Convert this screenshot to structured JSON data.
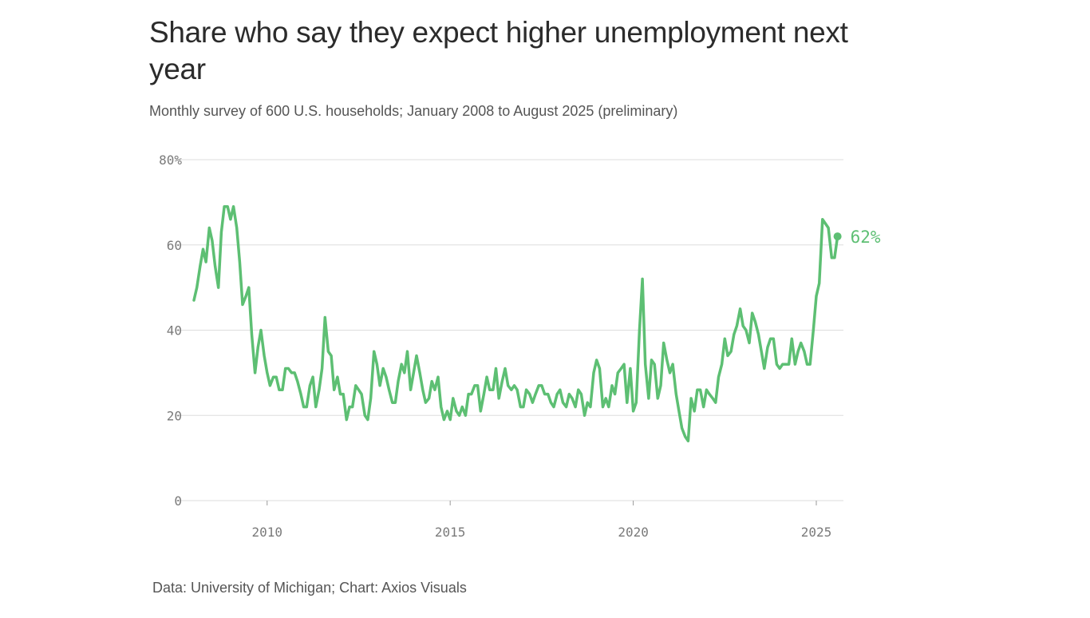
{
  "colors": {
    "line": "#5dbf73",
    "grid": "#dddddd",
    "axis_text": "#7a7a7a"
  },
  "chart_data": {
    "type": "line",
    "title": "Share who say they expect higher unemployment next year",
    "subtitle": "Monthly survey of 600 U.S. households; January 2008 to August 2025 (preliminary)",
    "source": "Data: University of Michigan; Chart: Axios Visuals",
    "xlim": [
      2008.0,
      2025.75
    ],
    "ylim": [
      0,
      80
    ],
    "y_ticks": [
      {
        "value": 0,
        "label": "0"
      },
      {
        "value": 20,
        "label": "20"
      },
      {
        "value": 40,
        "label": "40"
      },
      {
        "value": 60,
        "label": "60"
      },
      {
        "value": 80,
        "label": "80%"
      }
    ],
    "x_ticks": [
      {
        "value": 2010,
        "label": "2010"
      },
      {
        "value": 2015,
        "label": "2015"
      },
      {
        "value": 2020,
        "label": "2020"
      },
      {
        "value": 2025,
        "label": "2025"
      }
    ],
    "grid": true,
    "end_label": "62%",
    "series": [
      {
        "points": [
          [
            2008.0,
            47
          ],
          [
            2008.08,
            50
          ],
          [
            2008.17,
            55
          ],
          [
            2008.25,
            59
          ],
          [
            2008.33,
            56
          ],
          [
            2008.42,
            64
          ],
          [
            2008.5,
            61
          ],
          [
            2008.58,
            55
          ],
          [
            2008.67,
            50
          ],
          [
            2008.75,
            63
          ],
          [
            2008.83,
            69
          ],
          [
            2008.92,
            69
          ],
          [
            2009.0,
            66
          ],
          [
            2009.08,
            69
          ],
          [
            2009.17,
            64
          ],
          [
            2009.25,
            56
          ],
          [
            2009.33,
            46
          ],
          [
            2009.42,
            48
          ],
          [
            2009.5,
            50
          ],
          [
            2009.58,
            39
          ],
          [
            2009.67,
            30
          ],
          [
            2009.75,
            36
          ],
          [
            2009.83,
            40
          ],
          [
            2009.92,
            34
          ],
          [
            2010.0,
            30
          ],
          [
            2010.08,
            27
          ],
          [
            2010.17,
            29
          ],
          [
            2010.25,
            29
          ],
          [
            2010.33,
            26
          ],
          [
            2010.42,
            26
          ],
          [
            2010.5,
            31
          ],
          [
            2010.58,
            31
          ],
          [
            2010.67,
            30
          ],
          [
            2010.75,
            30
          ],
          [
            2010.83,
            28
          ],
          [
            2010.92,
            25
          ],
          [
            2011.0,
            22
          ],
          [
            2011.08,
            22
          ],
          [
            2011.17,
            27
          ],
          [
            2011.25,
            29
          ],
          [
            2011.33,
            22
          ],
          [
            2011.42,
            26
          ],
          [
            2011.5,
            31
          ],
          [
            2011.58,
            43
          ],
          [
            2011.67,
            35
          ],
          [
            2011.75,
            34
          ],
          [
            2011.83,
            26
          ],
          [
            2011.92,
            29
          ],
          [
            2012.0,
            25
          ],
          [
            2012.08,
            25
          ],
          [
            2012.17,
            19
          ],
          [
            2012.25,
            22
          ],
          [
            2012.33,
            22
          ],
          [
            2012.42,
            27
          ],
          [
            2012.5,
            26
          ],
          [
            2012.58,
            25
          ],
          [
            2012.67,
            20
          ],
          [
            2012.75,
            19
          ],
          [
            2012.83,
            24
          ],
          [
            2012.92,
            35
          ],
          [
            2013.0,
            32
          ],
          [
            2013.08,
            27
          ],
          [
            2013.17,
            31
          ],
          [
            2013.25,
            29
          ],
          [
            2013.33,
            26
          ],
          [
            2013.42,
            23
          ],
          [
            2013.5,
            23
          ],
          [
            2013.58,
            28
          ],
          [
            2013.67,
            32
          ],
          [
            2013.75,
            30
          ],
          [
            2013.83,
            35
          ],
          [
            2013.92,
            26
          ],
          [
            2014.0,
            30
          ],
          [
            2014.08,
            34
          ],
          [
            2014.17,
            30
          ],
          [
            2014.25,
            26
          ],
          [
            2014.33,
            23
          ],
          [
            2014.42,
            24
          ],
          [
            2014.5,
            28
          ],
          [
            2014.58,
            26
          ],
          [
            2014.67,
            29
          ],
          [
            2014.75,
            22
          ],
          [
            2014.83,
            19
          ],
          [
            2014.92,
            21
          ],
          [
            2015.0,
            19
          ],
          [
            2015.08,
            24
          ],
          [
            2015.17,
            21
          ],
          [
            2015.25,
            20
          ],
          [
            2015.33,
            22
          ],
          [
            2015.42,
            20
          ],
          [
            2015.5,
            25
          ],
          [
            2015.58,
            25
          ],
          [
            2015.67,
            27
          ],
          [
            2015.75,
            27
          ],
          [
            2015.83,
            21
          ],
          [
            2015.92,
            25
          ],
          [
            2016.0,
            29
          ],
          [
            2016.08,
            26
          ],
          [
            2016.17,
            26
          ],
          [
            2016.25,
            31
          ],
          [
            2016.33,
            24
          ],
          [
            2016.42,
            28
          ],
          [
            2016.5,
            31
          ],
          [
            2016.58,
            27
          ],
          [
            2016.67,
            26
          ],
          [
            2016.75,
            27
          ],
          [
            2016.83,
            26
          ],
          [
            2016.92,
            22
          ],
          [
            2017.0,
            22
          ],
          [
            2017.08,
            26
          ],
          [
            2017.17,
            25
          ],
          [
            2017.25,
            23
          ],
          [
            2017.33,
            25
          ],
          [
            2017.42,
            27
          ],
          [
            2017.5,
            27
          ],
          [
            2017.58,
            25
          ],
          [
            2017.67,
            25
          ],
          [
            2017.75,
            23
          ],
          [
            2017.83,
            22
          ],
          [
            2017.92,
            25
          ],
          [
            2018.0,
            26
          ],
          [
            2018.08,
            23
          ],
          [
            2018.17,
            22
          ],
          [
            2018.25,
            25
          ],
          [
            2018.33,
            24
          ],
          [
            2018.42,
            22
          ],
          [
            2018.5,
            26
          ],
          [
            2018.58,
            25
          ],
          [
            2018.67,
            20
          ],
          [
            2018.75,
            23
          ],
          [
            2018.83,
            22
          ],
          [
            2018.92,
            30
          ],
          [
            2019.0,
            33
          ],
          [
            2019.08,
            31
          ],
          [
            2019.17,
            22
          ],
          [
            2019.25,
            24
          ],
          [
            2019.33,
            22
          ],
          [
            2019.42,
            27
          ],
          [
            2019.5,
            25
          ],
          [
            2019.58,
            30
          ],
          [
            2019.67,
            31
          ],
          [
            2019.75,
            32
          ],
          [
            2019.83,
            23
          ],
          [
            2019.92,
            31
          ],
          [
            2020.0,
            21
          ],
          [
            2020.08,
            23
          ],
          [
            2020.17,
            40
          ],
          [
            2020.25,
            52
          ],
          [
            2020.33,
            32
          ],
          [
            2020.42,
            24
          ],
          [
            2020.5,
            33
          ],
          [
            2020.58,
            32
          ],
          [
            2020.67,
            24
          ],
          [
            2020.75,
            27
          ],
          [
            2020.83,
            37
          ],
          [
            2020.92,
            33
          ],
          [
            2021.0,
            30
          ],
          [
            2021.08,
            32
          ],
          [
            2021.17,
            25
          ],
          [
            2021.25,
            21
          ],
          [
            2021.33,
            17
          ],
          [
            2021.42,
            15
          ],
          [
            2021.5,
            14
          ],
          [
            2021.58,
            24
          ],
          [
            2021.67,
            21
          ],
          [
            2021.75,
            26
          ],
          [
            2021.83,
            26
          ],
          [
            2021.92,
            22
          ],
          [
            2022.0,
            26
          ],
          [
            2022.08,
            25
          ],
          [
            2022.17,
            24
          ],
          [
            2022.25,
            23
          ],
          [
            2022.33,
            29
          ],
          [
            2022.42,
            32
          ],
          [
            2022.5,
            38
          ],
          [
            2022.58,
            34
          ],
          [
            2022.67,
            35
          ],
          [
            2022.75,
            39
          ],
          [
            2022.83,
            41
          ],
          [
            2022.92,
            45
          ],
          [
            2023.0,
            41
          ],
          [
            2023.08,
            40
          ],
          [
            2023.17,
            37
          ],
          [
            2023.25,
            44
          ],
          [
            2023.33,
            42
          ],
          [
            2023.42,
            39
          ],
          [
            2023.5,
            35
          ],
          [
            2023.58,
            31
          ],
          [
            2023.67,
            36
          ],
          [
            2023.75,
            38
          ],
          [
            2023.83,
            38
          ],
          [
            2023.92,
            32
          ],
          [
            2024.0,
            31
          ],
          [
            2024.08,
            32
          ],
          [
            2024.17,
            32
          ],
          [
            2024.25,
            32
          ],
          [
            2024.33,
            38
          ],
          [
            2024.42,
            32
          ],
          [
            2024.5,
            35
          ],
          [
            2024.58,
            37
          ],
          [
            2024.67,
            35
          ],
          [
            2024.75,
            32
          ],
          [
            2024.83,
            32
          ],
          [
            2024.92,
            40
          ],
          [
            2025.0,
            48
          ],
          [
            2025.08,
            51
          ],
          [
            2025.17,
            66
          ],
          [
            2025.25,
            65
          ],
          [
            2025.33,
            64
          ],
          [
            2025.42,
            57
          ],
          [
            2025.5,
            57
          ],
          [
            2025.58,
            62
          ]
        ]
      }
    ]
  }
}
